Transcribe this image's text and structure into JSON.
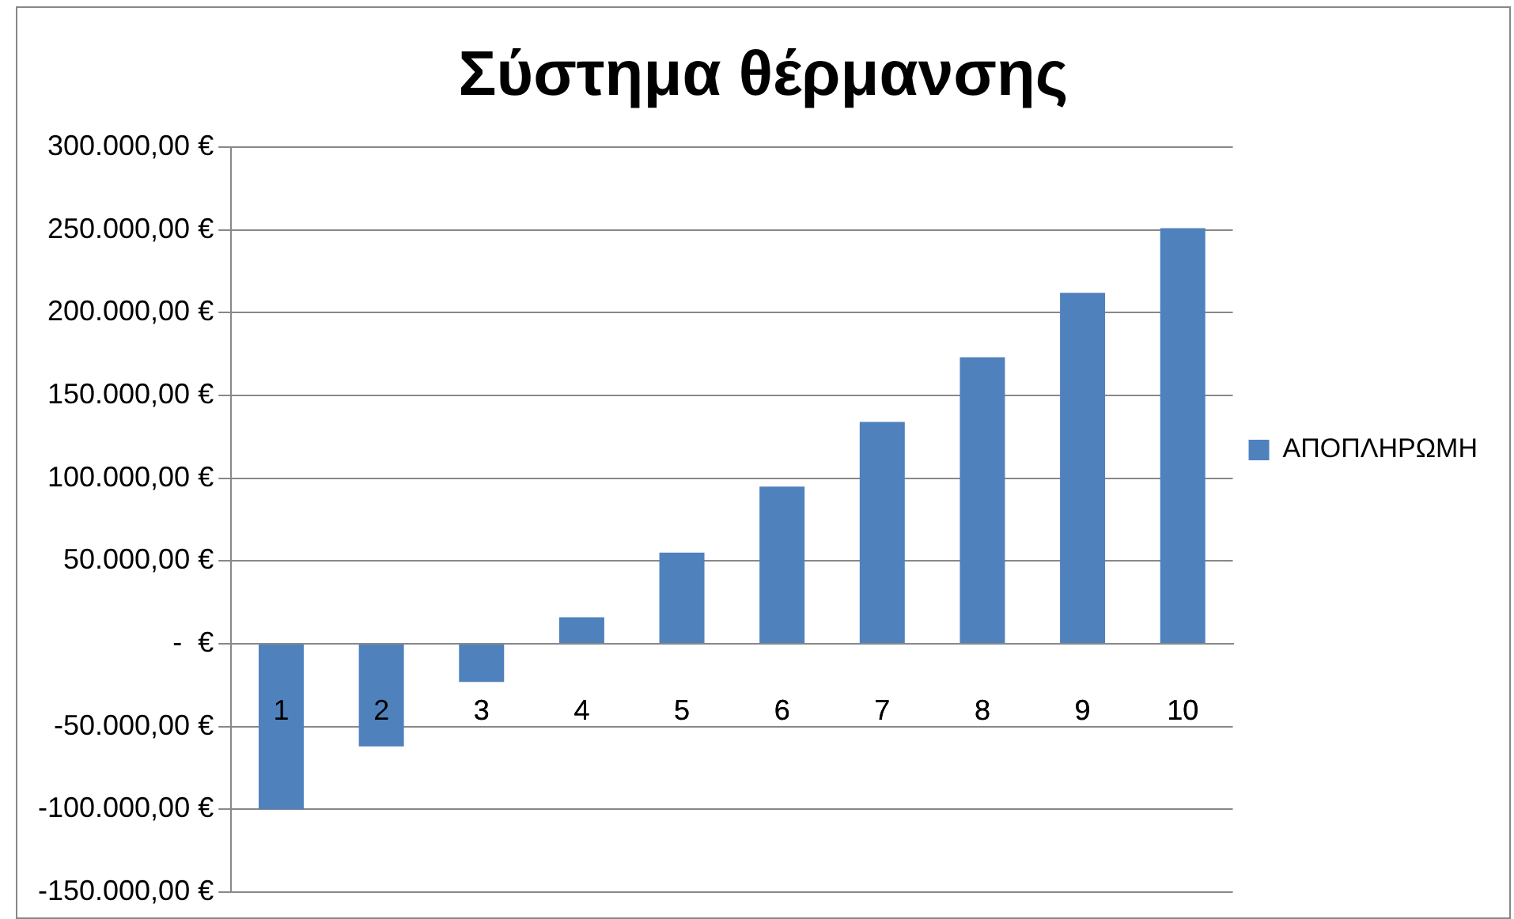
{
  "chart_data": {
    "type": "bar",
    "title": "Σύστημα θέρμανσης",
    "categories": [
      "1",
      "2",
      "3",
      "4",
      "5",
      "6",
      "7",
      "8",
      "9",
      "10"
    ],
    "series": [
      {
        "name": "ΑΠΟΠΛΗΡΩΜΗ",
        "color": "#4f81bd",
        "values": [
          -100000,
          -62000,
          -23000,
          16000,
          55000,
          95000,
          134000,
          173000,
          212000,
          251000
        ]
      }
    ],
    "ylim": [
      -150000,
      300000
    ],
    "yticks": [
      {
        "value": -150000,
        "label": "-150.000,00 €"
      },
      {
        "value": -100000,
        "label": "-100.000,00 €"
      },
      {
        "value": -50000,
        "label": "-50.000,00 €"
      },
      {
        "value": 0,
        "label": "-  €"
      },
      {
        "value": 50000,
        "label": "50.000,00 €"
      },
      {
        "value": 100000,
        "label": "100.000,00 €"
      },
      {
        "value": 150000,
        "label": "150.000,00 €"
      },
      {
        "value": 200000,
        "label": "200.000,00 €"
      },
      {
        "value": 250000,
        "label": "250.000,00 €"
      },
      {
        "value": 300000,
        "label": "300.000,00 €"
      }
    ],
    "grid": "y",
    "legend": "right"
  }
}
